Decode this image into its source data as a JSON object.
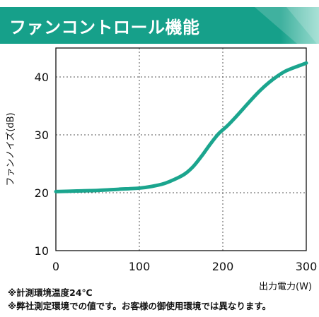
{
  "header": {
    "title": "ファンコントロール機能",
    "colors": {
      "band": "#16a08a",
      "band_light": "#7fd3c3"
    }
  },
  "notes": [
    "※計測環境温度24℃",
    "※弊社測定環境での値です。お客様の御使用環境では異なります。"
  ],
  "chart_data": {
    "type": "line",
    "title": "",
    "xlabel": "出力電力(W)",
    "ylabel": "ファンノイズ(dB)",
    "xlim": [
      0,
      300
    ],
    "ylim": [
      10,
      45
    ],
    "x_ticks": [
      0,
      100,
      200,
      300
    ],
    "y_ticks": [
      10,
      20,
      30,
      40
    ],
    "x_tick_labels": [
      "0",
      "100",
      "200",
      "300"
    ],
    "y_tick_labels": [
      "10",
      "20",
      "30",
      "40"
    ],
    "grid": true,
    "legend": "none",
    "series": [
      {
        "color": "#1ba58e",
        "x": [
          0,
          25,
          50,
          75,
          100,
          115,
          130,
          145,
          155,
          165,
          175,
          185,
          195,
          205,
          215,
          225,
          235,
          245,
          255,
          265,
          275,
          285,
          300
        ],
        "y": [
          20.2,
          20.3,
          20.4,
          20.6,
          20.8,
          21.1,
          21.6,
          22.5,
          23.3,
          24.6,
          26.4,
          28.4,
          30.2,
          31.5,
          33.0,
          34.6,
          36.2,
          37.7,
          39.0,
          40.1,
          41.0,
          41.6,
          42.4
        ]
      }
    ]
  }
}
